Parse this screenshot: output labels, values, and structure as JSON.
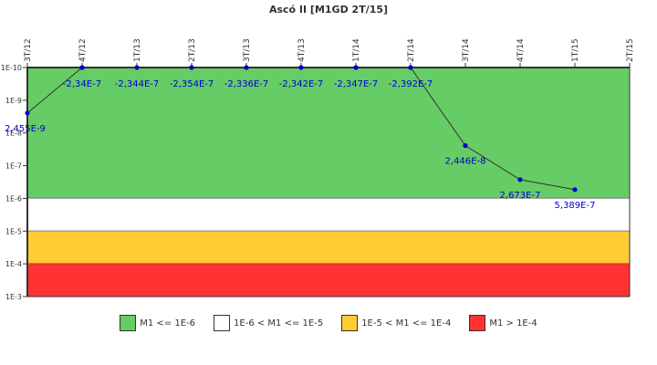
{
  "title": "Ascó II [M1GD 2T/15]",
  "chart_data": {
    "type": "line",
    "title": "Ascó II [M1GD 2T/15]",
    "xlabel": "",
    "ylabel": "",
    "y_scale": "log",
    "y_reversed": true,
    "ylim": [
      1e-10,
      0.001
    ],
    "y_ticks": [
      "1E-10",
      "1E-9",
      "1E-8",
      "1E-7",
      "1E-6",
      "1E-5",
      "1E-4",
      "1E-3"
    ],
    "categories": [
      "3T/12",
      "4T/12",
      "1T/13",
      "2T/13",
      "3T/13",
      "4T/13",
      "1T/14",
      "2T/14",
      "3T/14",
      "4T/14",
      "1T/15",
      "2T/15"
    ],
    "series": [
      {
        "name": "M1",
        "values": [
          2.455e-09,
          -2.34e-07,
          -2.344e-07,
          -2.354e-07,
          -2.336e-07,
          -2.342e-07,
          -2.347e-07,
          -2.392e-07,
          2.446e-08,
          2.673e-07,
          5.389e-07,
          null
        ],
        "labels": [
          "2,455E-9",
          "-2,34E-7",
          "-2,344E-7",
          "-2,354E-7",
          "-2,336E-7",
          "-2,342E-7",
          "-2,347E-7",
          "-2,392E-7",
          "2,446E-8",
          "2,673E-7",
          "5,389E-7",
          ""
        ]
      }
    ],
    "bands": [
      {
        "label": "M1 <= 1E-6",
        "from": 1e-10,
        "to": 1e-06,
        "color": "#66cc66"
      },
      {
        "label": "1E-6 < M1 <= 1E-5",
        "from": 1e-06,
        "to": 1e-05,
        "color": "#ffffff"
      },
      {
        "label": "1E-5 < M1 <= 1E-4",
        "from": 1e-05,
        "to": 0.0001,
        "color": "#ffcc33"
      },
      {
        "label": "M1 > 1E-4",
        "from": 0.0001,
        "to": 0.001,
        "color": "#ff3333"
      }
    ],
    "grid": false,
    "legend_position": "bottom"
  },
  "legend": [
    {
      "label": "M1 <= 1E-6",
      "color": "#66cc66"
    },
    {
      "label": "1E-6 < M1 <= 1E-5",
      "color": "#ffffff"
    },
    {
      "label": "1E-5 < M1 <= 1E-4",
      "color": "#ffcc33"
    },
    {
      "label": "M1 > 1E-4",
      "color": "#ff3333"
    }
  ]
}
